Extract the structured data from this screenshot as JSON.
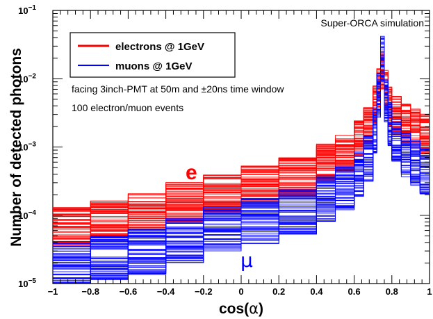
{
  "chart_data": {
    "type": "line",
    "subtype": "step histogram",
    "x_axis": {
      "label_prefix": "cos(",
      "label_symbol": "α",
      "label_suffix": ")",
      "range": [
        -1,
        1
      ],
      "ticks": [
        "−1",
        "−0.8",
        "−0.6",
        "−0.4",
        "−0.2",
        "0",
        "0.2",
        "0.4",
        "0.6",
        "0.8",
        "1"
      ]
    },
    "y_axis": {
      "label": "Number of detected photons",
      "scale": "log",
      "range": [
        1e-05,
        0.1
      ],
      "ticks": [
        {
          "mantissa": "10",
          "exp": "−5",
          "value": 1e-05
        },
        {
          "mantissa": "10",
          "exp": "−4",
          "value": 0.0001
        },
        {
          "mantissa": "10",
          "exp": "−3",
          "value": 0.001
        },
        {
          "mantissa": "10",
          "exp": "−2",
          "value": 0.01
        },
        {
          "mantissa": "10",
          "exp": "−1",
          "value": 0.1
        }
      ]
    },
    "title": "Super-ORCA simulation",
    "annotations": {
      "line1": "facing 3inch-PMT at 50m and ±20ns time window",
      "line2": "100 electron/muon events",
      "electron_label": "e",
      "muon_label": "μ"
    },
    "legend": {
      "position": "top-left",
      "entries": [
        {
          "name": "electrons @ 1GeV",
          "color": "#ff0000"
        },
        {
          "name": "muons @ 1GeV",
          "color": "#0000ff"
        }
      ]
    },
    "x": [
      -1.0,
      -0.8,
      -0.6,
      -0.4,
      -0.2,
      0.0,
      0.2,
      0.4,
      0.5,
      0.6,
      0.65,
      0.7,
      0.72,
      0.74,
      0.76,
      0.78,
      0.8,
      0.85,
      0.9,
      0.95,
      1.0
    ],
    "series": [
      {
        "name": "electrons @ 1GeV",
        "color": "#ff0000",
        "events": 100,
        "values": [
          7e-05,
          9e-05,
          0.00012,
          0.00016,
          0.00021,
          0.00028,
          0.00038,
          0.0006,
          0.00085,
          0.0014,
          0.0022,
          0.0042,
          0.0075,
          0.014,
          0.007,
          0.004,
          0.003,
          0.0023,
          0.0019,
          0.0016,
          0.0014
        ],
        "spread_low": 0.5,
        "spread_high": 1.9
      },
      {
        "name": "muons @ 1GeV",
        "color": "#0000ff",
        "events": 100,
        "values": [
          2e-05,
          2.5e-05,
          3e-05,
          4.5e-05,
          6.5e-05,
          8.5e-05,
          0.000115,
          0.00018,
          0.00025,
          0.00042,
          0.0007,
          0.0018,
          0.006,
          0.02,
          0.005,
          0.0022,
          0.0013,
          0.0008,
          0.0006,
          0.00045,
          0.00035
        ],
        "spread_low": 0.45,
        "spread_high": 2.1
      }
    ],
    "grid": false
  }
}
